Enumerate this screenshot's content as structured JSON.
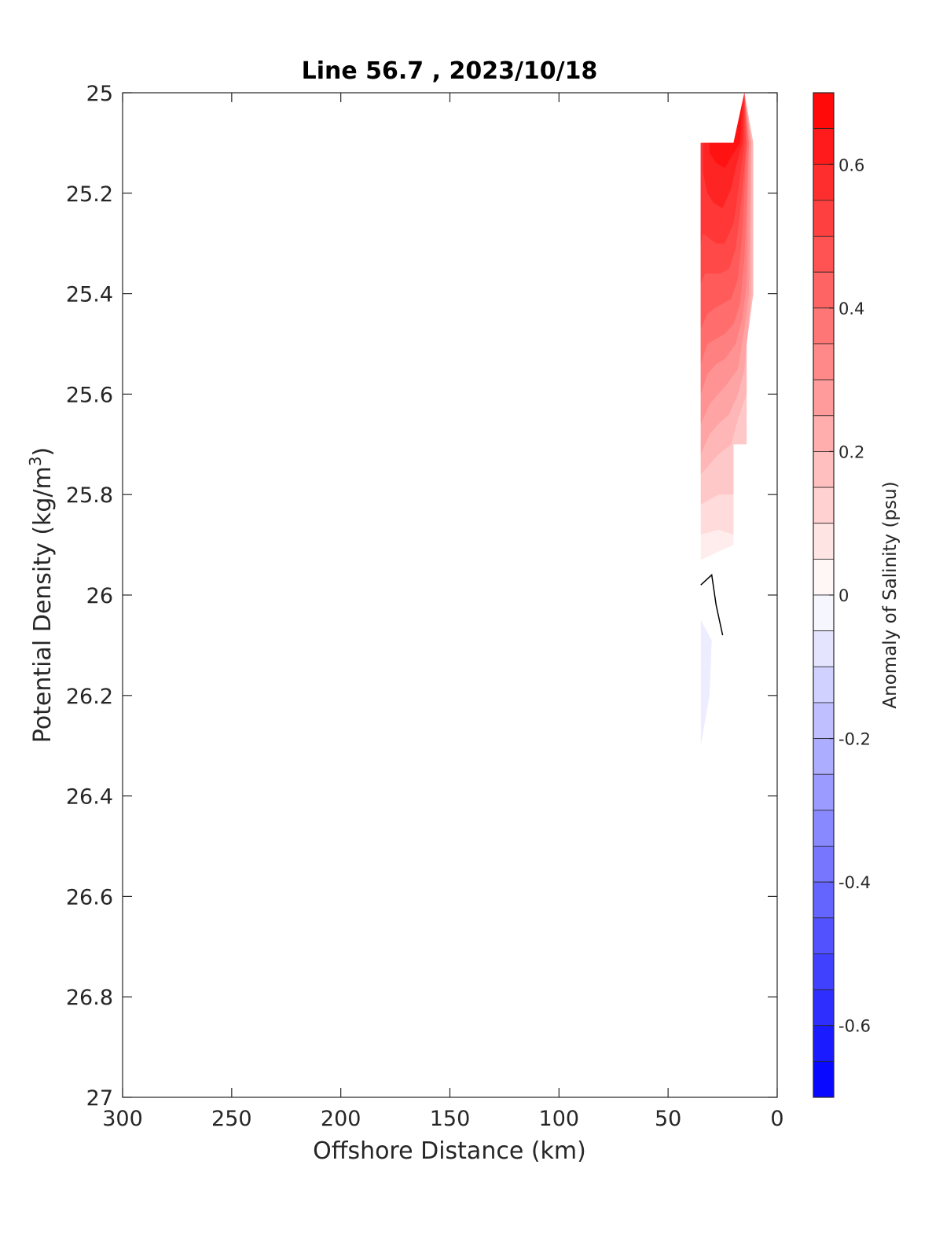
{
  "chart_data": {
    "type": "heatmap",
    "title": "Line 56.7 , 2023/10/18",
    "xlabel": "Offshore Distance (km)",
    "ylabel_main": "Potential Density (kg/m",
    "ylabel_sup": "3",
    "ylabel_end": ")",
    "colorbar_label": "Anomaly of Salinity (psu)",
    "xlim": [
      300,
      0
    ],
    "ylim": [
      25,
      27
    ],
    "x_reversed": true,
    "y_reversed": true,
    "x_ticks": [
      300,
      250,
      200,
      150,
      100,
      50,
      0
    ],
    "x_tick_labels": [
      "300",
      "250",
      "200",
      "150",
      "100",
      "50",
      "0"
    ],
    "y_ticks": [
      25,
      25.2,
      25.4,
      25.6,
      25.8,
      26,
      26.2,
      26.4,
      26.6,
      26.8,
      27
    ],
    "y_tick_labels": [
      "25",
      "25.2",
      "25.4",
      "25.6",
      "25.8",
      "26",
      "26.2",
      "26.4",
      "26.6",
      "26.8",
      "27"
    ],
    "colorbar_range": [
      -0.7,
      0.7
    ],
    "colorbar_ticks": [
      0.6,
      0.4,
      0.2,
      0,
      -0.2,
      -0.4,
      -0.6
    ],
    "colorbar_tick_labels": [
      "0.6",
      "0.4",
      "0.2",
      "0",
      "-0.2",
      "-0.4",
      "-0.6"
    ],
    "colorbar_levels": 28,
    "colormap": "blue-white-red",
    "colors": {
      "positive": "#ff0000",
      "negative": "#0000ff",
      "neutral": "#ffffff"
    },
    "contour_regions": [
      {
        "anomaly": 0.05,
        "polygon": [
          [
            35,
            25.1
          ],
          [
            20,
            25.1
          ],
          [
            15,
            25
          ],
          [
            11,
            25.1
          ],
          [
            11,
            25.4
          ],
          [
            14,
            25.5
          ],
          [
            14,
            25.7
          ],
          [
            20,
            25.7
          ],
          [
            20,
            25.9
          ],
          [
            35,
            25.93
          ]
        ]
      },
      {
        "anomaly": 0.1,
        "polygon": [
          [
            35,
            25.1
          ],
          [
            20,
            25.1
          ],
          [
            15,
            25
          ],
          [
            11,
            25.1
          ],
          [
            11,
            25.4
          ],
          [
            14,
            25.5
          ],
          [
            14,
            25.7
          ],
          [
            20,
            25.7
          ],
          [
            20,
            25.88
          ],
          [
            27,
            25.87
          ],
          [
            35,
            25.88
          ]
        ]
      },
      {
        "anomaly": 0.15,
        "polygon": [
          [
            35,
            25.1
          ],
          [
            20,
            25.1
          ],
          [
            15,
            25
          ],
          [
            11,
            25.1
          ],
          [
            11,
            25.4
          ],
          [
            14,
            25.5
          ],
          [
            14,
            25.7
          ],
          [
            20,
            25.7
          ],
          [
            20,
            25.8
          ],
          [
            27,
            25.8
          ],
          [
            35,
            25.82
          ]
        ]
      },
      {
        "anomaly": 0.2,
        "polygon": [
          [
            35,
            25.1
          ],
          [
            20,
            25.1
          ],
          [
            15,
            25
          ],
          [
            11,
            25.1
          ],
          [
            11,
            25.4
          ],
          [
            14,
            25.5
          ],
          [
            14,
            25.6
          ],
          [
            18,
            25.65
          ],
          [
            21,
            25.7
          ],
          [
            27,
            25.72
          ],
          [
            31,
            25.74
          ],
          [
            35,
            25.76
          ]
        ]
      },
      {
        "anomaly": 0.25,
        "polygon": [
          [
            35,
            25.1
          ],
          [
            20,
            25.1
          ],
          [
            15,
            25
          ],
          [
            12,
            25.1
          ],
          [
            12,
            25.4
          ],
          [
            14,
            25.5
          ],
          [
            15,
            25.55
          ],
          [
            18,
            25.6
          ],
          [
            22,
            25.64
          ],
          [
            27,
            25.66
          ],
          [
            31,
            25.68
          ],
          [
            35,
            25.72
          ]
        ]
      },
      {
        "anomaly": 0.3,
        "polygon": [
          [
            35,
            25.1
          ],
          [
            20,
            25.1
          ],
          [
            15,
            25
          ],
          [
            12,
            25.1
          ],
          [
            13,
            25.4
          ],
          [
            15,
            25.47
          ],
          [
            18,
            25.55
          ],
          [
            23,
            25.58
          ],
          [
            27,
            25.6
          ],
          [
            31,
            25.62
          ],
          [
            35,
            25.66
          ]
        ]
      },
      {
        "anomaly": 0.35,
        "polygon": [
          [
            35,
            25.1
          ],
          [
            20,
            25.1
          ],
          [
            15,
            25
          ],
          [
            13,
            25.1
          ],
          [
            14,
            25.38
          ],
          [
            16,
            25.45
          ],
          [
            19,
            25.5
          ],
          [
            24,
            25.53
          ],
          [
            28,
            25.54
          ],
          [
            32,
            25.56
          ],
          [
            35,
            25.6
          ]
        ]
      },
      {
        "anomaly": 0.4,
        "polygon": [
          [
            35,
            25.1
          ],
          [
            20,
            25.1
          ],
          [
            15,
            25
          ],
          [
            13,
            25.1
          ],
          [
            15,
            25.33
          ],
          [
            17,
            25.42
          ],
          [
            20,
            25.46
          ],
          [
            24,
            25.48
          ],
          [
            28,
            25.49
          ],
          [
            32,
            25.5
          ],
          [
            35,
            25.54
          ]
        ]
      },
      {
        "anomaly": 0.45,
        "polygon": [
          [
            35,
            25.1
          ],
          [
            20,
            25.1
          ],
          [
            15,
            25
          ],
          [
            14,
            25.1
          ],
          [
            16,
            25.28
          ],
          [
            18,
            25.37
          ],
          [
            21,
            25.41
          ],
          [
            25,
            25.42
          ],
          [
            29,
            25.43
          ],
          [
            32,
            25.44
          ],
          [
            35,
            25.47
          ]
        ]
      },
      {
        "anomaly": 0.5,
        "polygon": [
          [
            35,
            25.1
          ],
          [
            20,
            25.1
          ],
          [
            15,
            25
          ],
          [
            14,
            25.1
          ],
          [
            17,
            25.24
          ],
          [
            19,
            25.31
          ],
          [
            22,
            25.35
          ],
          [
            26,
            25.36
          ],
          [
            30,
            25.36
          ],
          [
            33,
            25.36
          ],
          [
            35,
            25.38
          ]
        ]
      },
      {
        "anomaly": 0.55,
        "polygon": [
          [
            35,
            25.1
          ],
          [
            20,
            25.1
          ],
          [
            15,
            25
          ],
          [
            15,
            25.1
          ],
          [
            18,
            25.2
          ],
          [
            20,
            25.26
          ],
          [
            24,
            25.3
          ],
          [
            28,
            25.3
          ],
          [
            31,
            25.29
          ],
          [
            34,
            25.28
          ],
          [
            35,
            25.3
          ]
        ]
      },
      {
        "anomaly": 0.6,
        "polygon": [
          [
            34,
            25.1
          ],
          [
            20,
            25.1
          ],
          [
            15,
            25
          ],
          [
            16,
            25.1
          ],
          [
            19,
            25.15
          ],
          [
            21,
            25.19
          ],
          [
            25,
            25.23
          ],
          [
            29,
            25.22
          ],
          [
            32,
            25.2
          ],
          [
            34,
            25.16
          ]
        ]
      },
      {
        "anomaly": 0.65,
        "polygon": [
          [
            31,
            25.1
          ],
          [
            20,
            25.1
          ],
          [
            16,
            25.02
          ],
          [
            17,
            25.1
          ],
          [
            20,
            25.12
          ],
          [
            24,
            25.15
          ],
          [
            28,
            25.14
          ],
          [
            31,
            25.12
          ]
        ]
      },
      {
        "anomaly": -0.05,
        "polygon": [
          [
            35,
            26.05
          ],
          [
            30,
            26.09
          ],
          [
            31,
            26.2
          ],
          [
            33,
            26.25
          ],
          [
            35,
            26.3
          ]
        ]
      }
    ],
    "contour_lines": [
      {
        "anomaly": 0,
        "points": [
          [
            35,
            25.98
          ],
          [
            30,
            25.96
          ],
          [
            28,
            26.02
          ],
          [
            25,
            26.08
          ]
        ]
      }
    ]
  }
}
